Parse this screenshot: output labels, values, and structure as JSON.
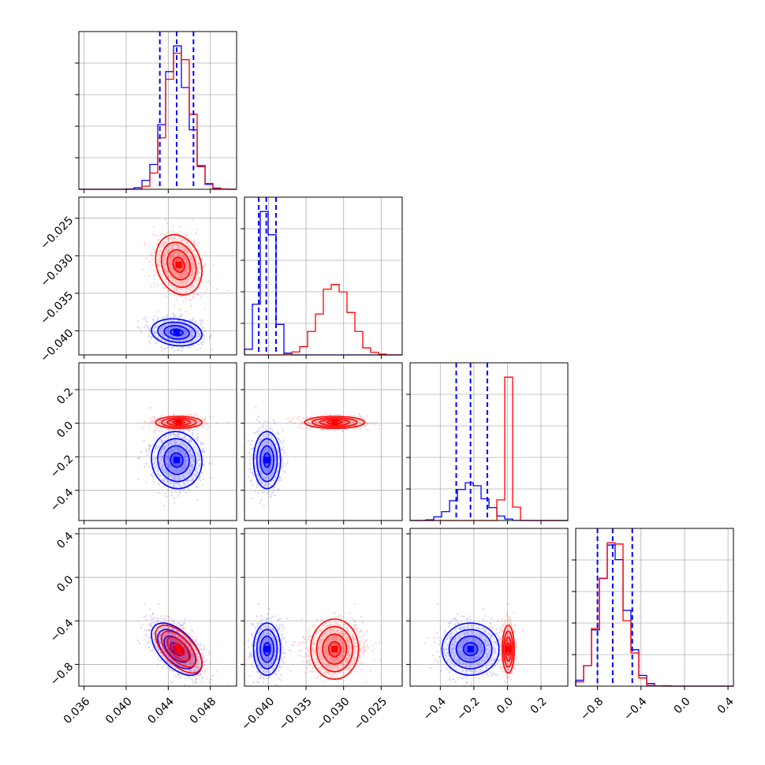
{
  "chart_data": {
    "type": "corner",
    "title": "",
    "parameters": [
      "",
      "",
      "",
      ""
    ],
    "series": [
      {
        "color": "#0000ff",
        "mean": [
          0.0448,
          -0.0402,
          -0.22,
          -0.66
        ],
        "std": [
          0.0012,
          0.0009,
          0.085,
          0.12
        ],
        "corr": [
          [
            0,
            1,
            -0.15
          ],
          [
            0,
            2,
            -0.05
          ],
          [
            0,
            3,
            -0.55
          ],
          [
            1,
            2,
            0.0
          ],
          [
            1,
            3,
            0.0
          ],
          [
            2,
            3,
            0.0
          ]
        ],
        "quantiles_16_50_84": [
          [
            0.0432,
            0.0448,
            0.0464
          ],
          [
            -0.0413,
            -0.0403,
            -0.039
          ],
          [
            -0.305,
            -0.22,
            -0.12
          ],
          [
            -0.8,
            -0.66,
            -0.48
          ]
        ]
      },
      {
        "color": "#ff0000",
        "mean": [
          0.045,
          -0.0312,
          0.005,
          -0.66
        ],
        "std": [
          0.0011,
          0.002,
          0.018,
          0.11
        ],
        "corr": [
          [
            0,
            1,
            -0.2
          ],
          [
            0,
            2,
            0.0
          ],
          [
            0,
            3,
            -0.6
          ],
          [
            1,
            2,
            0.0
          ],
          [
            1,
            3,
            0.0
          ],
          [
            2,
            3,
            0.0
          ]
        ],
        "quantiles_16_50_84": null
      }
    ],
    "axes": [
      {
        "range": [
          0.0355,
          0.0505
        ],
        "ticks": [
          0.036,
          0.04,
          0.044,
          0.048
        ],
        "tick_labels": [
          "0.036",
          "0.040",
          "0.044",
          "0.048"
        ]
      },
      {
        "range": [
          -0.0432,
          -0.0222
        ],
        "ticks": [
          -0.04,
          -0.035,
          -0.03,
          -0.025
        ],
        "tick_labels": [
          "−0.040",
          "−0.035",
          "−0.030",
          "−0.025"
        ]
      },
      {
        "range": [
          -0.58,
          0.36
        ],
        "ticks": [
          -0.4,
          -0.2,
          0.0,
          0.2
        ],
        "tick_labels": [
          "−0.4",
          "−0.2",
          "0.0",
          "0.2"
        ]
      },
      {
        "range": [
          -1.0,
          0.45
        ],
        "ticks": [
          -0.8,
          -0.4,
          0.0,
          0.4
        ],
        "tick_labels": [
          "−0.8",
          "−0.4",
          "0.0",
          "0.4"
        ]
      }
    ],
    "hist_y_ticks": 4,
    "grid": true
  }
}
